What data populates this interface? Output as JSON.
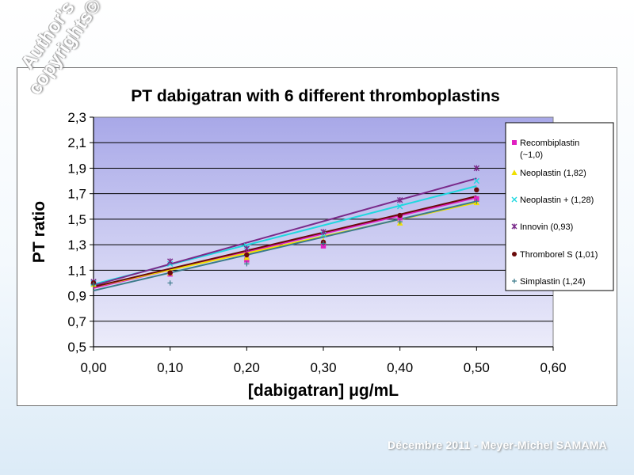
{
  "watermark": {
    "line1": "Author's",
    "line2": "copyrights©"
  },
  "footer": {
    "text": "Décembre 2011 - Meyer-Michel SAMAMA"
  },
  "chart_data": {
    "type": "scatter",
    "title": "PT dabigatran with 6 different thromboplastins",
    "xlabel": "[dabigatran] μg/mL",
    "ylabel": "PT ratio",
    "xlim": [
      0,
      0.6
    ],
    "ylim": [
      0.5,
      2.3
    ],
    "x_ticks": [
      0,
      0.1,
      0.2,
      0.3,
      0.4,
      0.5,
      0.6
    ],
    "x_tick_labels": [
      "0,00",
      "0,10",
      "0,20",
      "0,30",
      "0,40",
      "0,50",
      "0,60"
    ],
    "y_ticks": [
      0.5,
      0.7,
      0.9,
      1.1,
      1.3,
      1.5,
      1.7,
      1.9,
      2.1,
      2.3
    ],
    "y_tick_labels": [
      "0,5",
      "0,7",
      "0,9",
      "1,1",
      "1,3",
      "1,5",
      "1,7",
      "1,9",
      "2,1",
      "2,3"
    ],
    "grid": true,
    "legend_position": "right",
    "plot_background": [
      "#a8a8e8",
      "#ececfa"
    ],
    "x": [
      0,
      0.1,
      0.2,
      0.3,
      0.4,
      0.5
    ],
    "series": [
      {
        "name": "Recombiplastin",
        "name2": "(~1,0)",
        "marker": "square",
        "color": "#e020c0",
        "values": [
          1.0,
          1.07,
          1.18,
          1.29,
          1.51,
          1.66
        ],
        "trend": [
          0.96,
          1.67
        ]
      },
      {
        "name": "Neoplastin (1,82)",
        "marker": "triangle",
        "color": "#f0e000",
        "values": [
          0.99,
          1.08,
          1.2,
          1.33,
          1.47,
          1.63
        ],
        "trend": [
          0.97,
          1.63
        ]
      },
      {
        "name": "Neoplastin + (1,28)",
        "marker": "x",
        "color": "#20d8e0",
        "values": [
          1.0,
          1.15,
          1.29,
          1.38,
          1.6,
          1.8
        ],
        "trend": [
          0.99,
          1.76
        ]
      },
      {
        "name": "Innovin (0,93)",
        "marker": "star",
        "color": "#7a2a8a",
        "values": [
          1.01,
          1.17,
          1.27,
          1.4,
          1.65,
          1.9
        ],
        "trend": [
          0.98,
          1.82
        ]
      },
      {
        "name": "Thromborel S (1,01)",
        "marker": "circle",
        "color": "#6a0a0a",
        "values": [
          1.0,
          1.08,
          1.22,
          1.32,
          1.53,
          1.73
        ],
        "trend": [
          0.97,
          1.68
        ]
      },
      {
        "name": "Simplastin (1,24)",
        "marker": "plus",
        "color": "#3a7a8a",
        "values": [
          0.99,
          1.0,
          1.15,
          1.31,
          1.48,
          1.64
        ],
        "trend": [
          0.94,
          1.64
        ]
      }
    ]
  }
}
